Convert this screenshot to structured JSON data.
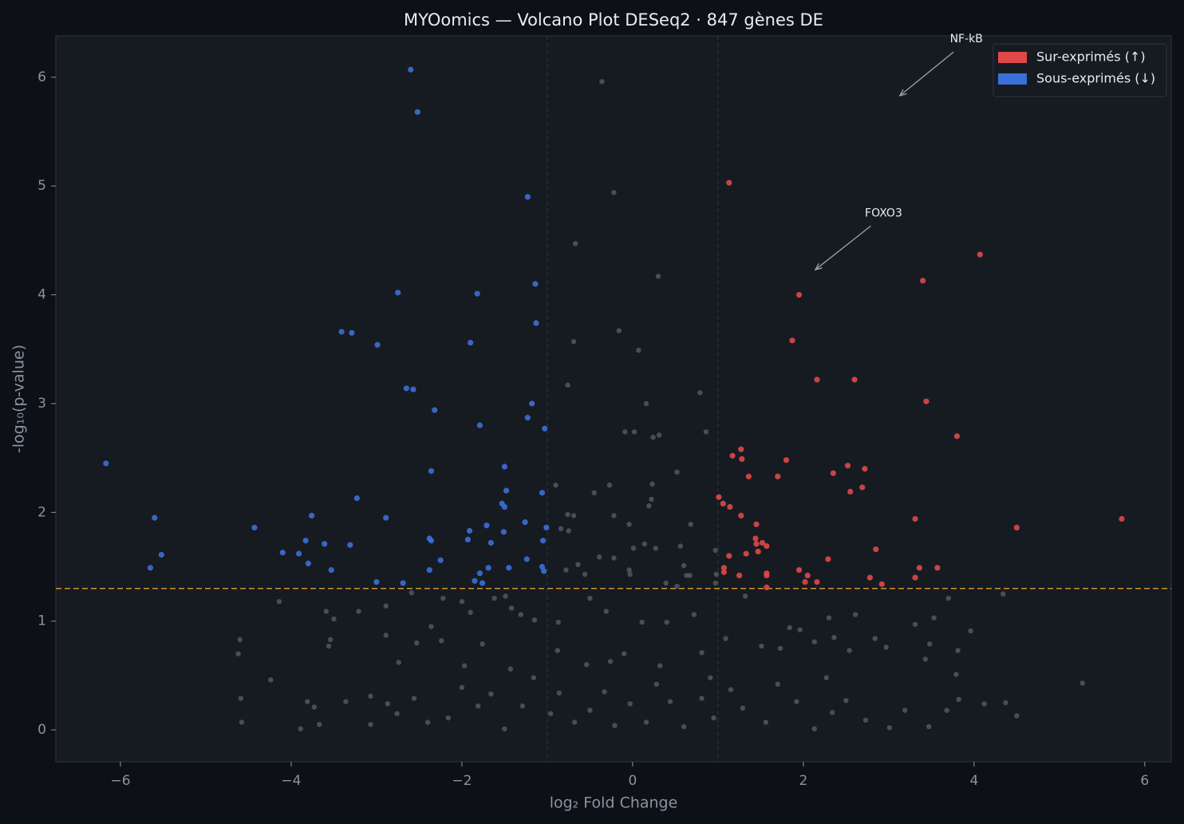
{
  "chart_data": {
    "type": "scatter",
    "title": "MYOomics — Volcano Plot DESeq2 · 847 gènes DE",
    "xlabel": "log₂ Fold Change",
    "ylabel": "-log₁₀(p-value)",
    "xlim": [
      -6.757,
      6.31
    ],
    "ylim": [
      -0.293,
      6.38
    ],
    "xticks": [
      {
        "value": -6,
        "label": "−6"
      },
      {
        "value": -4,
        "label": "−4"
      },
      {
        "value": -2,
        "label": "−2"
      },
      0,
      2,
      4,
      6
    ],
    "yticks": [
      0,
      1,
      2,
      3,
      4,
      5,
      6
    ],
    "thresholds": {
      "x": [
        -1,
        1
      ],
      "y": 1.3
    },
    "legend": "upper right",
    "annotations": [
      {
        "text": "NF-kB",
        "xy": [
          3.13,
          5.83
        ],
        "xytext": [
          3.91,
          6.35
        ]
      },
      {
        "text": "FOXO3",
        "xy": [
          2.14,
          4.23
        ],
        "xytext": [
          2.94,
          4.75
        ]
      }
    ],
    "series": [
      {
        "color": "#5b6068",
        "x": [
          -0.36,
          -0.22,
          -0.67,
          0.3,
          -0.69,
          -0.16,
          0.07,
          -0.76,
          0.79,
          0.16,
          -0.09,
          0.02,
          0.24,
          0.31,
          0.86,
          -0.9,
          -0.27,
          0.23,
          0.52,
          -0.45,
          0.22,
          0.19,
          -0.76,
          -0.69,
          -0.22,
          -0.04,
          0.68,
          -0.84,
          -0.75,
          -0.39,
          -0.22,
          0.01,
          0.14,
          0.27,
          0.56,
          0.97,
          -0.78,
          -0.64,
          -0.56,
          -0.04,
          -0.03,
          0.6,
          0.63,
          0.67,
          0.98,
          0.39,
          0.52,
          0.97,
          1.32,
          4.34,
          3.7,
          -2.59,
          -4.14,
          -4.6,
          -4.62,
          -4.24,
          -4.59,
          -4.58,
          -3.89,
          -3.59,
          -3.5,
          -3.54,
          -3.56,
          -3.21,
          -2.89,
          -2.89,
          -2.53,
          -2.22,
          -2.0,
          -1.9,
          -2.24,
          -2.36,
          -1.76,
          -1.62,
          -1.49,
          -1.42,
          -1.31,
          -1.15,
          -0.87,
          -0.5,
          -0.31,
          0.11,
          0.4,
          0.72,
          1.09,
          1.51,
          1.73,
          1.84,
          1.96,
          2.3,
          2.61,
          2.13,
          2.36,
          2.54,
          2.84,
          2.97,
          3.31,
          3.53,
          3.48,
          3.96,
          3.81,
          3.79,
          3.43,
          4.37,
          4.5,
          5.27,
          4.12,
          3.82,
          3.68,
          3.47,
          3.19,
          3.01,
          2.73,
          2.5,
          2.27,
          2.34,
          2.13,
          1.92,
          1.7,
          1.56,
          1.29,
          1.15,
          0.95,
          0.81,
          0.6,
          0.44,
          0.28,
          0.16,
          -0.03,
          -0.21,
          -0.33,
          -0.5,
          -0.68,
          -0.86,
          -0.96,
          -1.16,
          -1.29,
          -1.5,
          -1.66,
          -1.81,
          -2.0,
          -2.16,
          -2.4,
          -2.56,
          -2.76,
          -2.87,
          -3.07,
          -3.07,
          -3.36,
          -3.67,
          -3.81,
          -3.73,
          -0.88,
          -0.54,
          -0.26,
          -0.1,
          0.32,
          0.81,
          0.91,
          -1.43,
          -1.97,
          -2.74
        ],
        "values": [
          5.96,
          4.94,
          4.47,
          4.17,
          3.57,
          3.67,
          3.49,
          3.17,
          3.1,
          3.0,
          2.74,
          2.74,
          2.69,
          2.71,
          2.74,
          2.25,
          2.25,
          2.26,
          2.37,
          2.18,
          2.12,
          2.06,
          1.98,
          1.97,
          1.97,
          1.89,
          1.89,
          1.85,
          1.83,
          1.59,
          1.58,
          1.67,
          1.71,
          1.67,
          1.69,
          1.65,
          1.47,
          1.52,
          1.43,
          1.47,
          1.43,
          1.51,
          1.42,
          1.42,
          1.43,
          1.35,
          1.32,
          1.35,
          1.23,
          1.25,
          1.21,
          1.26,
          1.18,
          0.83,
          0.7,
          0.46,
          0.29,
          0.07,
          0.01,
          1.09,
          1.02,
          0.83,
          0.77,
          1.09,
          1.14,
          0.87,
          0.8,
          1.21,
          1.18,
          1.08,
          0.82,
          0.95,
          0.79,
          1.21,
          1.23,
          1.12,
          1.06,
          1.01,
          0.99,
          1.21,
          1.09,
          0.99,
          0.99,
          1.06,
          0.84,
          0.77,
          0.75,
          0.94,
          0.92,
          1.03,
          1.06,
          0.81,
          0.85,
          0.73,
          0.84,
          0.76,
          0.97,
          1.03,
          0.79,
          0.91,
          0.73,
          0.51,
          0.65,
          0.25,
          0.13,
          0.43,
          0.24,
          0.28,
          0.18,
          0.03,
          0.18,
          0.02,
          0.09,
          0.27,
          0.48,
          0.16,
          0.01,
          0.26,
          0.42,
          0.07,
          0.2,
          0.37,
          0.11,
          0.29,
          0.03,
          0.26,
          0.42,
          0.07,
          0.24,
          0.04,
          0.35,
          0.18,
          0.07,
          0.34,
          0.15,
          0.48,
          0.22,
          0.01,
          0.33,
          0.22,
          0.39,
          0.11,
          0.07,
          0.29,
          0.15,
          0.24,
          0.31,
          0.05,
          0.26,
          0.05,
          0.26,
          0.21,
          0.73,
          0.6,
          0.63,
          0.7,
          0.59,
          0.71,
          0.48,
          0.56,
          0.59,
          0.62
        ]
      },
      {
        "name": "Sur-exprimés (↑)",
        "color": "#e04848",
        "x": [
          1.13,
          4.07,
          3.4,
          1.95,
          1.87,
          2.16,
          2.6,
          3.44,
          3.8,
          1.17,
          1.27,
          1.28,
          1.8,
          1.36,
          1.7,
          2.35,
          2.52,
          2.72,
          2.69,
          2.55,
          1.01,
          1.06,
          1.14,
          1.27,
          1.45,
          3.31,
          4.5,
          5.73,
          1.44,
          1.45,
          1.52,
          1.57,
          1.47,
          1.33,
          1.13,
          2.85,
          1.07,
          1.07,
          1.95,
          2.29,
          1.25,
          1.57,
          1.57,
          2.05,
          2.02,
          2.16,
          2.78,
          2.92,
          3.31,
          3.36,
          3.57,
          1.57
        ],
        "values": [
          5.03,
          4.37,
          4.13,
          4.0,
          3.58,
          3.22,
          3.22,
          3.02,
          2.7,
          2.52,
          2.58,
          2.49,
          2.48,
          2.33,
          2.33,
          2.36,
          2.43,
          2.4,
          2.23,
          2.19,
          2.14,
          2.08,
          2.05,
          1.97,
          1.89,
          1.94,
          1.86,
          1.94,
          1.76,
          1.71,
          1.72,
          1.69,
          1.64,
          1.62,
          1.6,
          1.66,
          1.49,
          1.45,
          1.47,
          1.57,
          1.42,
          1.44,
          1.42,
          1.42,
          1.36,
          1.36,
          1.4,
          1.34,
          1.4,
          1.49,
          1.49,
          1.31
        ]
      },
      {
        "name": "Sous-exprimés (↓)",
        "color": "#3b6fd8",
        "x": [
          -6.17,
          -5.6,
          -5.52,
          -5.65,
          -4.43,
          -4.1,
          -3.91,
          -3.83,
          -3.8,
          -3.76,
          -3.61,
          -3.53,
          -3.41,
          -3.29,
          -3.31,
          -3.23,
          -3.0,
          -2.99,
          -2.89,
          -2.75,
          -2.69,
          -2.65,
          -2.6,
          -2.57,
          -2.52,
          -2.38,
          -2.38,
          -2.36,
          -2.36,
          -2.32,
          -2.25,
          -1.93,
          -1.91,
          -1.9,
          -1.85,
          -1.82,
          -1.79,
          -1.79,
          -1.76,
          -1.71,
          -1.69,
          -1.66,
          -1.53,
          -1.51,
          -1.5,
          -1.5,
          -1.48,
          -1.45,
          -1.26,
          -1.24,
          -1.23,
          -1.23,
          -1.18,
          -1.14,
          -1.13,
          -1.06,
          -1.06,
          -1.05,
          -1.04,
          -1.03,
          -1.01
        ],
        "values": [
          2.45,
          1.95,
          1.61,
          1.49,
          1.86,
          1.63,
          1.62,
          1.74,
          1.53,
          1.97,
          1.71,
          1.47,
          3.66,
          3.65,
          1.7,
          2.13,
          1.36,
          3.54,
          1.95,
          4.02,
          1.35,
          3.14,
          6.07,
          3.13,
          5.68,
          1.47,
          1.76,
          1.74,
          2.38,
          2.94,
          1.56,
          1.75,
          1.83,
          3.56,
          1.37,
          4.01,
          1.44,
          2.8,
          1.35,
          1.88,
          1.49,
          1.72,
          2.08,
          1.82,
          2.05,
          2.42,
          2.2,
          1.49,
          1.91,
          1.57,
          4.9,
          2.87,
          3.0,
          4.1,
          3.74,
          2.18,
          1.5,
          1.74,
          1.46,
          2.77,
          1.86
        ]
      }
    ]
  }
}
